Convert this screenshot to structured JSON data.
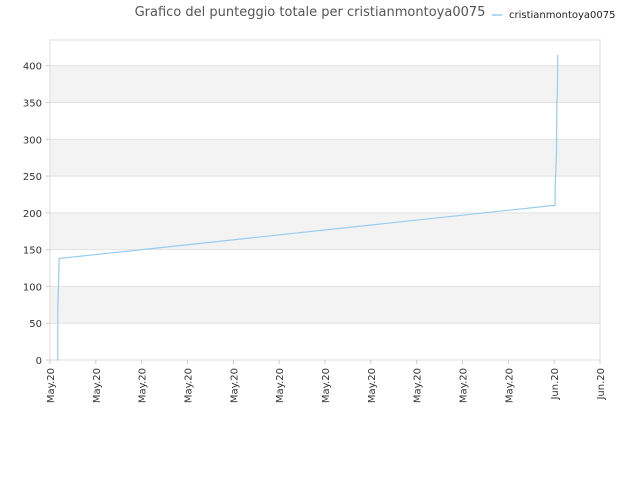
{
  "chart_data": {
    "type": "line",
    "title": "Grafico del punteggio totale per cristianmontoya0075",
    "xlabel": "",
    "ylabel": "",
    "x_tick_labels": [
      "May.20",
      "May.20",
      "May.20",
      "May.20",
      "May.20",
      "May.20",
      "May.20",
      "May.20",
      "May.20",
      "May.20",
      "May.20",
      "Jun.20",
      "Jun.20"
    ],
    "xlim": [
      0,
      12
    ],
    "ylim": [
      0,
      435
    ],
    "y_ticks": [
      0,
      50,
      100,
      150,
      200,
      250,
      300,
      350,
      400
    ],
    "grid": true,
    "legend_position": "top-right",
    "series": [
      {
        "name": "cristianmontoya0075",
        "color": "#99ccf1",
        "x": [
          0.15,
          0.17,
          0.17,
          0.2,
          10.97,
          11.02,
          11.02,
          11.05,
          11.06,
          11.07,
          11.08
        ],
        "y": [
          0,
          0,
          70,
          138,
          210,
          210,
          235,
          280,
          355,
          360,
          415
        ]
      }
    ]
  }
}
